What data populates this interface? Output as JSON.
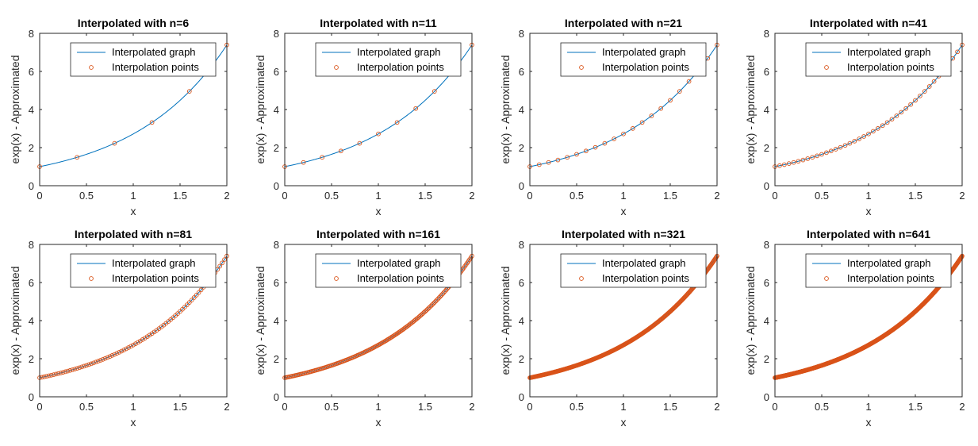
{
  "chart_data": [
    {
      "type": "line",
      "title": "Interpolated with n=6",
      "n": 6,
      "xlabel": "x",
      "ylabel": "exp(x) - Approximated",
      "xlim": [
        0,
        2
      ],
      "ylim": [
        0,
        8
      ],
      "xticks": [
        "0",
        "0.5",
        "1",
        "1.5",
        "2"
      ],
      "yticks": [
        "0",
        "2",
        "4",
        "6",
        "8"
      ],
      "grid": false,
      "legend": "top-right",
      "series": [
        {
          "name": "Interpolated graph",
          "style": "line",
          "color": "#0072BD",
          "function": "exp(x)"
        },
        {
          "name": "Interpolation points",
          "style": "markers",
          "color": "#D95319",
          "x_range": [
            0,
            2
          ],
          "count": 6,
          "function": "exp(x)"
        }
      ]
    },
    {
      "type": "line",
      "title": "Interpolated with n=11",
      "n": 11,
      "xlabel": "x",
      "ylabel": "exp(x) - Approximated",
      "xlim": [
        0,
        2
      ],
      "ylim": [
        0,
        8
      ],
      "xticks": [
        "0",
        "0.5",
        "1",
        "1.5",
        "2"
      ],
      "yticks": [
        "0",
        "2",
        "4",
        "6",
        "8"
      ],
      "grid": false,
      "legend": "top-right",
      "series": [
        {
          "name": "Interpolated graph",
          "style": "line",
          "color": "#0072BD",
          "function": "exp(x)"
        },
        {
          "name": "Interpolation points",
          "style": "markers",
          "color": "#D95319",
          "x_range": [
            0,
            2
          ],
          "count": 11,
          "function": "exp(x)"
        }
      ]
    },
    {
      "type": "line",
      "title": "Interpolated with n=21",
      "n": 21,
      "xlabel": "x",
      "ylabel": "exp(x) - Approximated",
      "xlim": [
        0,
        2
      ],
      "ylim": [
        0,
        8
      ],
      "xticks": [
        "0",
        "0.5",
        "1",
        "1.5",
        "2"
      ],
      "yticks": [
        "0",
        "2",
        "4",
        "6",
        "8"
      ],
      "grid": false,
      "legend": "top-right",
      "series": [
        {
          "name": "Interpolated graph",
          "style": "line",
          "color": "#0072BD",
          "function": "exp(x)"
        },
        {
          "name": "Interpolation points",
          "style": "markers",
          "color": "#D95319",
          "x_range": [
            0,
            2
          ],
          "count": 21,
          "function": "exp(x)"
        }
      ]
    },
    {
      "type": "line",
      "title": "Interpolated with n=41",
      "n": 41,
      "xlabel": "x",
      "ylabel": "exp(x) - Approximated",
      "xlim": [
        0,
        2
      ],
      "ylim": [
        0,
        8
      ],
      "xticks": [
        "0",
        "0.5",
        "1",
        "1.5",
        "2"
      ],
      "yticks": [
        "0",
        "2",
        "4",
        "6",
        "8"
      ],
      "grid": false,
      "legend": "top-right",
      "series": [
        {
          "name": "Interpolated graph",
          "style": "line",
          "color": "#0072BD",
          "function": "exp(x)"
        },
        {
          "name": "Interpolation points",
          "style": "markers",
          "color": "#D95319",
          "x_range": [
            0,
            2
          ],
          "count": 41,
          "function": "exp(x)"
        }
      ]
    },
    {
      "type": "line",
      "title": "Interpolated with n=81",
      "n": 81,
      "xlabel": "x",
      "ylabel": "exp(x) - Approximated",
      "xlim": [
        0,
        2
      ],
      "ylim": [
        0,
        8
      ],
      "xticks": [
        "0",
        "0.5",
        "1",
        "1.5",
        "2"
      ],
      "yticks": [
        "0",
        "2",
        "4",
        "6",
        "8"
      ],
      "grid": false,
      "legend": "top-right",
      "series": [
        {
          "name": "Interpolated graph",
          "style": "line",
          "color": "#0072BD",
          "function": "exp(x)"
        },
        {
          "name": "Interpolation points",
          "style": "markers",
          "color": "#D95319",
          "x_range": [
            0,
            2
          ],
          "count": 81,
          "function": "exp(x)"
        }
      ]
    },
    {
      "type": "line",
      "title": "Interpolated with n=161",
      "n": 161,
      "xlabel": "x",
      "ylabel": "exp(x) - Approximated",
      "xlim": [
        0,
        2
      ],
      "ylim": [
        0,
        8
      ],
      "xticks": [
        "0",
        "0.5",
        "1",
        "1.5",
        "2"
      ],
      "yticks": [
        "0",
        "2",
        "4",
        "6",
        "8"
      ],
      "grid": false,
      "legend": "top-right",
      "series": [
        {
          "name": "Interpolated graph",
          "style": "line",
          "color": "#0072BD",
          "function": "exp(x)"
        },
        {
          "name": "Interpolation points",
          "style": "markers",
          "color": "#D95319",
          "x_range": [
            0,
            2
          ],
          "count": 161,
          "function": "exp(x)"
        }
      ]
    },
    {
      "type": "line",
      "title": "Interpolated with n=321",
      "n": 321,
      "xlabel": "x",
      "ylabel": "exp(x) - Approximated",
      "xlim": [
        0,
        2
      ],
      "ylim": [
        0,
        8
      ],
      "xticks": [
        "0",
        "0.5",
        "1",
        "1.5",
        "2"
      ],
      "yticks": [
        "0",
        "2",
        "4",
        "6",
        "8"
      ],
      "grid": false,
      "legend": "top-right",
      "series": [
        {
          "name": "Interpolated graph",
          "style": "line",
          "color": "#0072BD",
          "function": "exp(x)"
        },
        {
          "name": "Interpolation points",
          "style": "markers",
          "color": "#D95319",
          "x_range": [
            0,
            2
          ],
          "count": 321,
          "function": "exp(x)"
        }
      ]
    },
    {
      "type": "line",
      "title": "Interpolated with n=641",
      "n": 641,
      "xlabel": "x",
      "ylabel": "exp(x) - Approximated",
      "xlim": [
        0,
        2
      ],
      "ylim": [
        0,
        8
      ],
      "xticks": [
        "0",
        "0.5",
        "1",
        "1.5",
        "2"
      ],
      "yticks": [
        "0",
        "2",
        "4",
        "6",
        "8"
      ],
      "grid": false,
      "legend": "top-right",
      "series": [
        {
          "name": "Interpolated graph",
          "style": "line",
          "color": "#0072BD",
          "function": "exp(x)"
        },
        {
          "name": "Interpolation points",
          "style": "markers",
          "color": "#D95319",
          "x_range": [
            0,
            2
          ],
          "count": 641,
          "function": "exp(x)"
        }
      ]
    }
  ]
}
